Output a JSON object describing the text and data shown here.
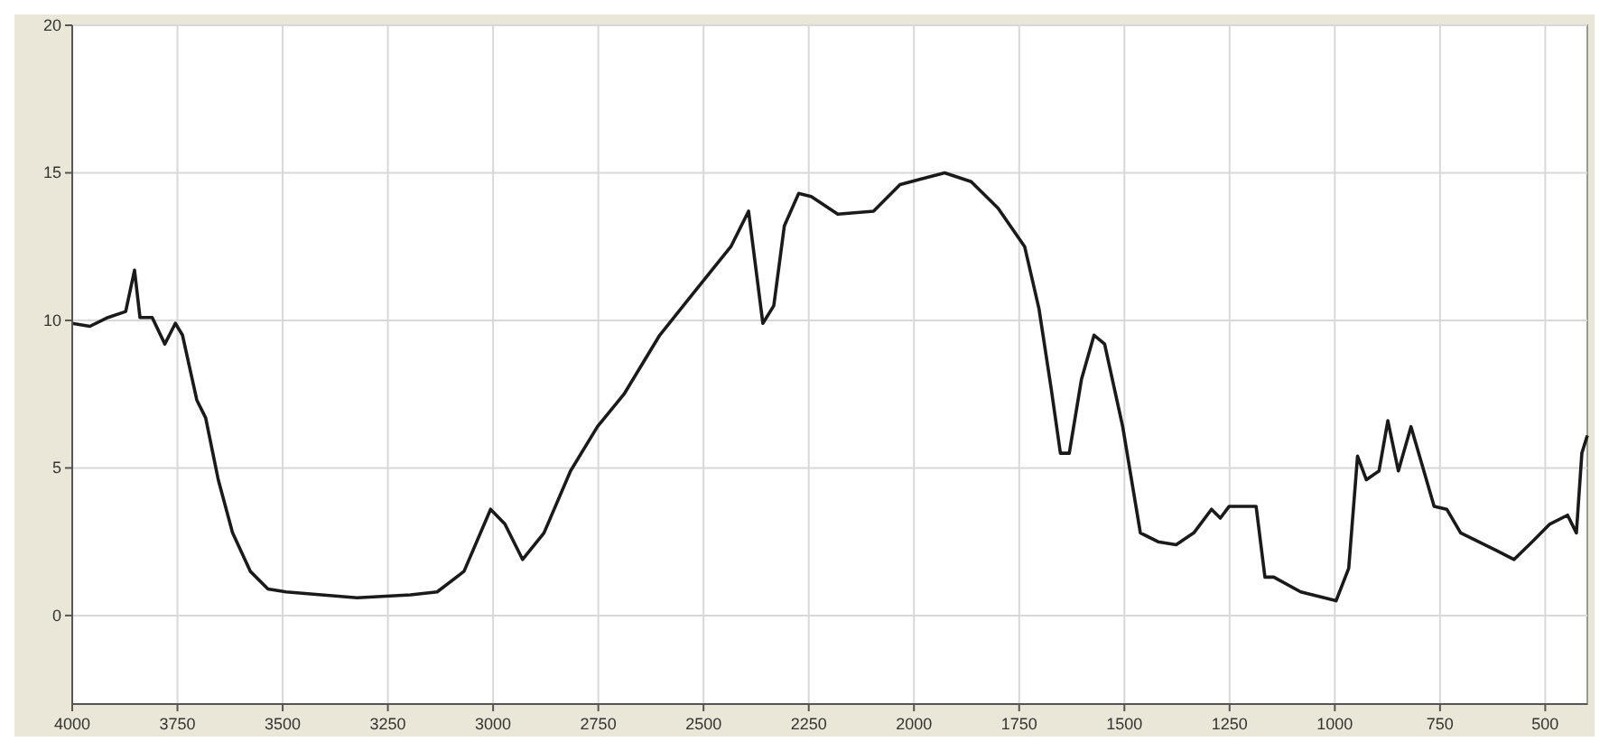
{
  "chart_data": {
    "type": "line",
    "grid": true,
    "marker": "none",
    "line_style": "solid",
    "x": [
      4000,
      3958,
      3915,
      3873,
      3852,
      3839,
      3810,
      3780,
      3755,
      3738,
      3704,
      3683,
      3653,
      3619,
      3577,
      3535,
      3492,
      3408,
      3323,
      3196,
      3133,
      3069,
      3006,
      2972,
      2930,
      2879,
      2816,
      2752,
      2689,
      2604,
      2520,
      2435,
      2393,
      2359,
      2333,
      2308,
      2274,
      2244,
      2181,
      2096,
      2033,
      1927,
      1864,
      1800,
      1737,
      1703,
      1674,
      1652,
      1631,
      1602,
      1572,
      1547,
      1504,
      1462,
      1420,
      1377,
      1335,
      1293,
      1272,
      1251,
      1187,
      1166,
      1145,
      1081,
      997,
      967,
      946,
      925,
      895,
      874,
      849,
      819,
      764,
      734,
      701,
      616,
      574,
      531,
      489,
      447,
      426,
      413,
      400
    ],
    "series": [
      {
        "color": "#1a1a1a",
        "values": [
          9.9,
          9.8,
          10.1,
          10.3,
          11.7,
          10.1,
          10.1,
          9.2,
          9.9,
          9.5,
          7.3,
          6.7,
          4.6,
          2.8,
          1.5,
          0.9,
          0.8,
          0.7,
          0.6,
          0.7,
          0.8,
          1.5,
          3.6,
          3.1,
          1.9,
          2.8,
          4.9,
          6.4,
          7.5,
          9.5,
          11.0,
          12.5,
          13.7,
          9.9,
          10.5,
          13.2,
          14.3,
          14.2,
          13.6,
          13.7,
          14.6,
          15.0,
          14.7,
          13.8,
          12.5,
          10.4,
          7.7,
          5.5,
          5.5,
          8.0,
          9.5,
          9.2,
          6.4,
          2.8,
          2.5,
          2.4,
          2.8,
          3.6,
          3.3,
          3.7,
          3.7,
          1.3,
          1.3,
          0.8,
          0.5,
          1.6,
          5.4,
          4.6,
          4.9,
          6.6,
          4.9,
          6.4,
          3.7,
          3.6,
          2.8,
          2.2,
          1.9,
          2.5,
          3.1,
          3.4,
          2.8,
          5.5,
          6.1
        ]
      }
    ],
    "xlim": [
      4000,
      400
    ],
    "xticks": [
      4000,
      3750,
      3500,
      3250,
      3000,
      2750,
      2500,
      2250,
      2000,
      1750,
      1500,
      1250,
      1000,
      750,
      500
    ],
    "ylim": [
      -3,
      20
    ],
    "yticks": [
      0,
      5,
      10,
      15,
      20
    ]
  }
}
